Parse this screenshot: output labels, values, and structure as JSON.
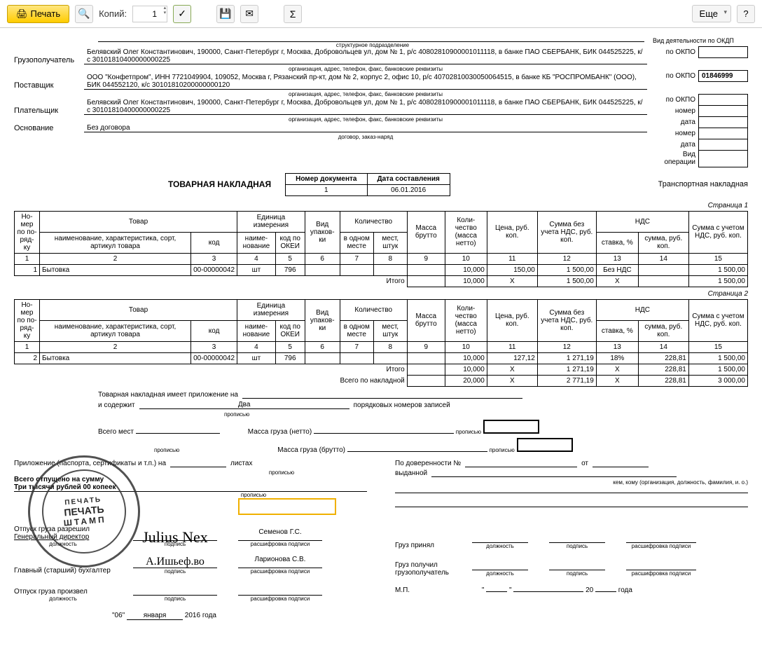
{
  "toolbar": {
    "print": "Печать",
    "copies_label": "Копий:",
    "copies_value": "1",
    "more": "Еще",
    "help": "?"
  },
  "header": {
    "struct_sub": "структурное подразделение",
    "activity_label": "Вид деятельности по ОКДП",
    "consignee_label": "Грузополучатель",
    "consignee": "Белявский Олег Константинович,  190000, Санкт-Петербург г, Москва, Добровольцев ул, дом № 1, р/с 40802810900001011118, в банке ПАО СБЕРБАНК, БИК 044525225, к/с 30101810400000000225",
    "org_sub": "организация, адрес, телефон, факс, банковские реквизиты",
    "supplier_label": "Поставщик",
    "supplier": "ООО \"Конфетпром\", ИНН 7721049904, 109052, Москва г, Рязанский пр-кт, дом № 2, корпус 2, офис 10, р/с 40702810030050064515, в банке КБ \"РОСПРОМБАНК\" (ООО), БИК 044552120, к/с 30101810200000000120",
    "payer_label": "Плательщик",
    "payer": "Белявский Олег Константинович, 190000, Санкт-Петербург г, Москва, Добровольцев ул, дом № 1, р/с 40802810900001011118, в банке ПАО СБЕРБАНК, БИК 044525225, к/с 30101810400000000225",
    "basis_label": "Основание",
    "basis": "Без договора",
    "basis_sub": "договор, заказ-наряд",
    "okpo_label": "по ОКПО",
    "okpo_supplier": "01846999",
    "transport_label": "Транспортная накладная",
    "operation_label": "Вид операции",
    "num_label": "номер",
    "date_label": "дата"
  },
  "doc": {
    "title": "ТОВАРНАЯ НАКЛАДНАЯ",
    "num_header": "Номер документа",
    "date_header": "Дата составления",
    "num": "1",
    "date": "06.01.2016"
  },
  "table_headers": {
    "num": "Но-мер по по-ряд-ку",
    "goods": "Товар",
    "name": "наименование, характеристика, сорт, артикул товара",
    "code": "код",
    "unit": "Единица измерения",
    "unit_name": "наиме-нование",
    "okei": "код по ОКЕИ",
    "pack": "Вид упаков-ки",
    "qty": "Количество",
    "in_one": "в одном месте",
    "places": "мест, штук",
    "gross": "Масса брутто",
    "net": "Коли-чество (масса нетто)",
    "price": "Цена, руб. коп.",
    "sum_novat": "Сумма без учета НДС, руб. коп.",
    "vat": "НДС",
    "rate": "ставка, %",
    "vat_sum": "сумма, руб. коп.",
    "total": "Сумма с учетом НДС, руб. коп."
  },
  "colnums": [
    "1",
    "2",
    "3",
    "4",
    "5",
    "6",
    "7",
    "8",
    "9",
    "10",
    "11",
    "12",
    "13",
    "14",
    "15"
  ],
  "page1": {
    "label": "Страница 1",
    "row": {
      "n": "1",
      "name": "Бытовка",
      "code": "00-00000042",
      "unit": "шт",
      "okei": "796",
      "qty": "10,000",
      "price": "150,00",
      "sum": "1 500,00",
      "rate": "Без НДС",
      "vat": "",
      "total": "1 500,00"
    },
    "itogo": "Итого",
    "itogo_row": {
      "qty": "10,000",
      "price": "Х",
      "sum": "1 500,00",
      "rate": "Х",
      "vat": "",
      "total": "1 500,00"
    }
  },
  "page2": {
    "label": "Страница 2",
    "row": {
      "n": "2",
      "name": "Бытовка",
      "code": "00-00000042",
      "unit": "шт",
      "okei": "796",
      "qty": "10,000",
      "price": "127,12",
      "sum": "1 271,19",
      "rate": "18%",
      "vat": "228,81",
      "total": "1 500,00"
    },
    "itogo": "Итого",
    "itogo_row": {
      "qty": "10,000",
      "price": "Х",
      "sum": "1 271,19",
      "rate": "Х",
      "vat": "228,81",
      "total": "1 500,00"
    },
    "vsego": "Всего по накладной",
    "vsego_row": {
      "qty": "20,000",
      "price": "Х",
      "sum": "2 771,19",
      "rate": "Х",
      "vat": "228,81",
      "total": "3 000,00"
    }
  },
  "footer": {
    "attachment": "Товарная накладная имеет приложение на",
    "contains": "и содержит",
    "contains_val": "Два",
    "records": "порядковых номеров записей",
    "written": "прописью",
    "gross_label": "Масса груза (нетто)",
    "gross2_label": "Масса груза (брутто)",
    "places_label": "Всего мест",
    "attach2": "Приложение (паспорта, сертификаты и т.п.) на",
    "sheets": "листах",
    "total_label": "Всего отпущено  на сумму",
    "total_words": "Три тысячи рублей 00 копеек",
    "allowed": "Отпуск груза разрешил",
    "director": "Генеральный директор",
    "decode": "расшифровка подписи",
    "position": "должность",
    "signature": "подпись",
    "accountant": "Главный (старший) бухгалтер",
    "released": "Отпуск груза произвел",
    "name1": "Семенов Г.С.",
    "name2": "Ларионова С.В.",
    "proxy": "По доверенности №",
    "from": "от",
    "issued": "выданной",
    "issued_sub": "кем, кому (организация, должность, фамилия, и. о.)",
    "received": "Груз принял",
    "received2": "Груз получил грузополучатель",
    "mp": "М.П.",
    "date_day": "\"06\"",
    "date_month": "января",
    "date_year": "2016",
    "year_label": "года",
    "year_label2": "20",
    "sig1": "Julius Nex",
    "sig2": "А.Ишьеф.во",
    "stamp_top": "ПЕЧАТЬ",
    "stamp_mid": "ПЕЧАТЬ",
    "stamp_bot": "ШТАМП"
  }
}
